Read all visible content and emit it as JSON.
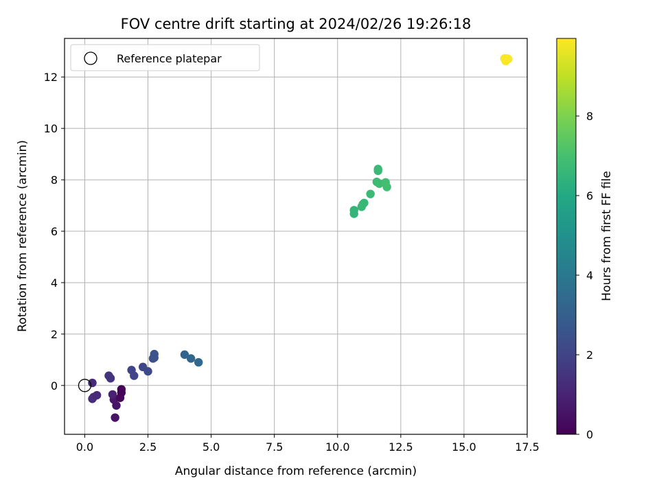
{
  "chart_data": {
    "type": "scatter",
    "title": "FOV centre drift starting at 2024/02/26 19:26:18",
    "xlabel": "Angular distance from reference (arcmin)",
    "ylabel": "Rotation from reference (arcmin)",
    "xlim": [
      -0.8,
      17.5
    ],
    "ylim": [
      -1.9,
      13.5
    ],
    "xticks": [
      0.0,
      2.5,
      5.0,
      7.5,
      10.0,
      12.5,
      15.0,
      17.5
    ],
    "xtick_labels": [
      "0.0",
      "2.5",
      "5.0",
      "7.5",
      "10.0",
      "12.5",
      "15.0",
      "17.5"
    ],
    "yticks": [
      0,
      2,
      4,
      6,
      8,
      10,
      12
    ],
    "ytick_labels": [
      "0",
      "2",
      "4",
      "6",
      "8",
      "10",
      "12"
    ],
    "grid": true,
    "legend": {
      "position": "top-left",
      "entries": [
        {
          "label": "Reference platepar",
          "marker": "open-circle"
        }
      ]
    },
    "reference_point": {
      "x": 0.0,
      "y": 0.0
    },
    "colormap": "viridis",
    "colorbar": {
      "label": "Hours from first FF file",
      "range": [
        0,
        9.95
      ],
      "ticks": [
        0,
        2,
        4,
        6,
        8
      ],
      "tick_labels": [
        "0",
        "2",
        "4",
        "6",
        "8"
      ]
    },
    "points": [
      {
        "x": 1.2,
        "y": -1.25,
        "c": 0.5
      },
      {
        "x": 1.25,
        "y": -0.78,
        "c": 0.55
      },
      {
        "x": 1.15,
        "y": -0.55,
        "c": 0.6
      },
      {
        "x": 1.4,
        "y": -0.48,
        "c": 0.2
      },
      {
        "x": 1.45,
        "y": -0.28,
        "c": 0.1
      },
      {
        "x": 1.45,
        "y": -0.15,
        "c": 0.05
      },
      {
        "x": 1.1,
        "y": -0.35,
        "c": 0.9
      },
      {
        "x": 0.3,
        "y": -0.52,
        "c": 1.3
      },
      {
        "x": 0.35,
        "y": -0.45,
        "c": 1.3
      },
      {
        "x": 0.48,
        "y": -0.38,
        "c": 1.2
      },
      {
        "x": 0.3,
        "y": 0.1,
        "c": 1.2
      },
      {
        "x": 0.95,
        "y": 0.38,
        "c": 1.5
      },
      {
        "x": 1.02,
        "y": 0.28,
        "c": 1.5
      },
      {
        "x": 1.85,
        "y": 0.6,
        "c": 2.0
      },
      {
        "x": 1.95,
        "y": 0.38,
        "c": 2.0
      },
      {
        "x": 2.3,
        "y": 0.72,
        "c": 2.1
      },
      {
        "x": 2.5,
        "y": 0.55,
        "c": 2.2
      },
      {
        "x": 2.7,
        "y": 1.05,
        "c": 2.4
      },
      {
        "x": 2.75,
        "y": 1.22,
        "c": 2.5
      },
      {
        "x": 2.75,
        "y": 1.08,
        "c": 2.5
      },
      {
        "x": 3.95,
        "y": 1.2,
        "c": 3.2
      },
      {
        "x": 4.2,
        "y": 1.05,
        "c": 3.3
      },
      {
        "x": 4.5,
        "y": 0.9,
        "c": 3.4
      },
      {
        "x": 10.65,
        "y": 6.82,
        "c": 6.5
      },
      {
        "x": 10.65,
        "y": 6.68,
        "c": 6.5
      },
      {
        "x": 10.95,
        "y": 6.95,
        "c": 6.6
      },
      {
        "x": 11.0,
        "y": 7.05,
        "c": 6.6
      },
      {
        "x": 11.05,
        "y": 7.1,
        "c": 6.6
      },
      {
        "x": 11.3,
        "y": 7.45,
        "c": 6.7
      },
      {
        "x": 11.55,
        "y": 7.92,
        "c": 6.8
      },
      {
        "x": 11.65,
        "y": 7.85,
        "c": 6.8
      },
      {
        "x": 11.6,
        "y": 8.35,
        "c": 6.7
      },
      {
        "x": 11.6,
        "y": 8.42,
        "c": 6.7
      },
      {
        "x": 11.9,
        "y": 7.9,
        "c": 6.9
      },
      {
        "x": 11.95,
        "y": 7.72,
        "c": 6.9
      },
      {
        "x": 16.6,
        "y": 12.72,
        "c": 9.9
      },
      {
        "x": 16.65,
        "y": 12.62,
        "c": 9.9
      },
      {
        "x": 16.7,
        "y": 12.72,
        "c": 9.9
      },
      {
        "x": 16.62,
        "y": 12.68,
        "c": 9.9
      },
      {
        "x": 16.75,
        "y": 12.7,
        "c": 9.9
      }
    ]
  }
}
